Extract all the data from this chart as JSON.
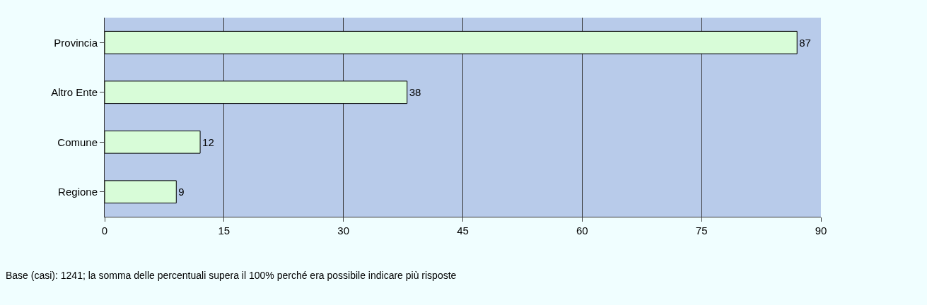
{
  "chart_data": {
    "type": "bar",
    "orientation": "horizontal",
    "categories": [
      "Provincia",
      "Altro Ente",
      "Comune",
      "Regione"
    ],
    "values": [
      87,
      38,
      12,
      9
    ],
    "color": "#d8fcd8",
    "xlim": [
      0,
      90
    ],
    "xticks": [
      0,
      15,
      30,
      45,
      60,
      75,
      90
    ],
    "grid": "x",
    "data_labels": true,
    "legend": false,
    "annotations": [
      "Base (casi): 1241; la somma delle percentuali supera il 100% perché era possibile indicare più risposte"
    ]
  }
}
